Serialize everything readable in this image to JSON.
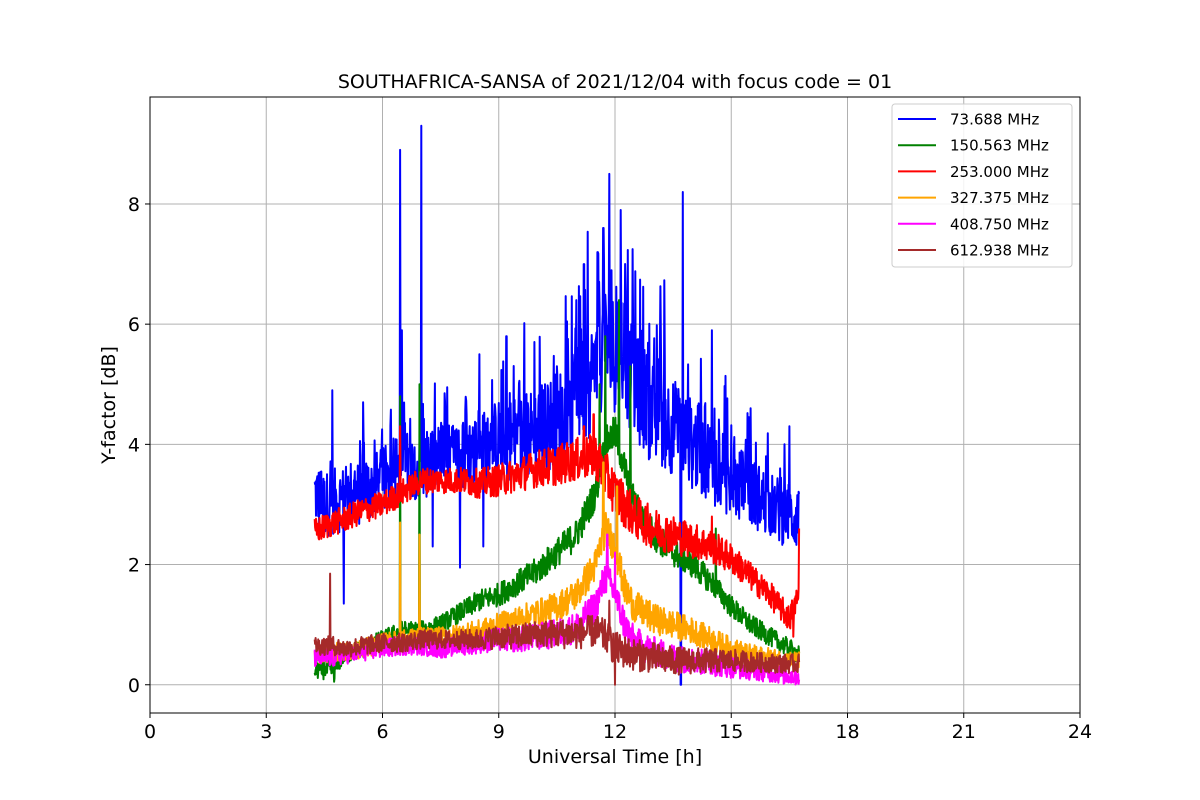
{
  "chart_data": {
    "type": "line",
    "title": "SOUTHAFRICA-SANSA of 2021/12/04 with focus code = 01",
    "xlabel": "Universal Time [h]",
    "ylabel": "Y-factor [dB]",
    "xlim": [
      0,
      24
    ],
    "ylim": [
      -0.47,
      9.78
    ],
    "xticks": [
      0,
      3,
      6,
      9,
      12,
      15,
      18,
      21,
      24
    ],
    "yticks": [
      0,
      2,
      4,
      6,
      8
    ],
    "grid": true,
    "legend_position": "top-right",
    "series": [
      {
        "name": " 73.688 MHz",
        "color": "#0000ff",
        "points": [
          [
            4.25,
            3.2
          ],
          [
            4.5,
            3.0
          ],
          [
            5.0,
            3.1
          ],
          [
            5.5,
            3.2
          ],
          [
            6.0,
            3.4
          ],
          [
            6.5,
            3.7
          ],
          [
            7.0,
            3.6
          ],
          [
            7.5,
            3.8
          ],
          [
            8.0,
            3.8
          ],
          [
            8.5,
            3.9
          ],
          [
            9.0,
            4.1
          ],
          [
            9.5,
            4.1
          ],
          [
            10.0,
            4.2
          ],
          [
            10.5,
            4.4
          ],
          [
            11.0,
            4.7
          ],
          [
            11.5,
            5.2
          ],
          [
            11.75,
            5.7
          ],
          [
            12.0,
            5.5
          ],
          [
            12.25,
            5.4
          ],
          [
            12.5,
            5.0
          ],
          [
            13.0,
            4.5
          ],
          [
            13.5,
            4.3
          ],
          [
            14.0,
            4.0
          ],
          [
            14.5,
            3.7
          ],
          [
            15.0,
            3.4
          ],
          [
            15.5,
            3.2
          ],
          [
            16.0,
            3.0
          ],
          [
            16.5,
            2.8
          ],
          [
            16.75,
            2.8
          ]
        ],
        "spikes": [
          [
            4.7,
            4.9
          ],
          [
            5.0,
            5.2
          ],
          [
            5.5,
            4.7
          ],
          [
            6.45,
            8.9
          ],
          [
            6.5,
            5.9
          ],
          [
            7.0,
            9.3
          ],
          [
            8.5,
            5.5
          ],
          [
            9.2,
            5.8
          ],
          [
            10.5,
            5.3
          ],
          [
            11.0,
            6.4
          ],
          [
            11.2,
            7.0
          ],
          [
            11.55,
            7.2
          ],
          [
            11.7,
            7.6
          ],
          [
            11.85,
            8.5
          ],
          [
            12.15,
            7.9
          ],
          [
            13.75,
            8.2
          ],
          [
            14.5,
            5.9
          ],
          [
            15.5,
            4.6
          ],
          [
            16.5,
            4.3
          ]
        ],
        "dips": [
          [
            5.0,
            1.35
          ],
          [
            7.3,
            2.3
          ],
          [
            8.0,
            1.95
          ],
          [
            8.6,
            2.3
          ],
          [
            13.7,
            0.0
          ]
        ]
      },
      {
        "name": "150.563 MHz",
        "color": "#008000",
        "points": [
          [
            4.25,
            0.25
          ],
          [
            4.75,
            0.25
          ],
          [
            5.0,
            0.5
          ],
          [
            5.5,
            0.6
          ],
          [
            6.0,
            0.75
          ],
          [
            6.5,
            0.9
          ],
          [
            7.0,
            0.9
          ],
          [
            7.5,
            1.0
          ],
          [
            8.0,
            1.2
          ],
          [
            8.5,
            1.4
          ],
          [
            9.0,
            1.5
          ],
          [
            9.5,
            1.7
          ],
          [
            10.0,
            1.9
          ],
          [
            10.5,
            2.2
          ],
          [
            11.0,
            2.5
          ],
          [
            11.5,
            3.2
          ],
          [
            11.75,
            4.0
          ],
          [
            12.0,
            4.2
          ],
          [
            12.25,
            3.6
          ],
          [
            12.5,
            3.0
          ],
          [
            13.0,
            2.5
          ],
          [
            13.5,
            2.2
          ],
          [
            14.0,
            2.0
          ],
          [
            14.5,
            1.7
          ],
          [
            15.0,
            1.3
          ],
          [
            15.5,
            1.0
          ],
          [
            16.0,
            0.8
          ],
          [
            16.5,
            0.6
          ],
          [
            16.75,
            0.5
          ]
        ],
        "spikes": [
          [
            6.45,
            4.8
          ],
          [
            6.95,
            5.0
          ],
          [
            11.6,
            5.0
          ],
          [
            11.75,
            5.8
          ],
          [
            12.1,
            6.4
          ],
          [
            12.4,
            5.3
          ],
          [
            14.6,
            2.6
          ]
        ],
        "dips": [
          [
            4.75,
            0.05
          ]
        ]
      },
      {
        "name": "253.000 MHz",
        "color": "#ff0000",
        "points": [
          [
            4.25,
            2.55
          ],
          [
            4.75,
            2.7
          ],
          [
            5.0,
            2.75
          ],
          [
            5.5,
            2.9
          ],
          [
            6.0,
            3.0
          ],
          [
            6.5,
            3.2
          ],
          [
            7.0,
            3.4
          ],
          [
            7.5,
            3.4
          ],
          [
            8.0,
            3.4
          ],
          [
            8.5,
            3.35
          ],
          [
            9.0,
            3.4
          ],
          [
            9.5,
            3.5
          ],
          [
            10.0,
            3.6
          ],
          [
            10.5,
            3.65
          ],
          [
            11.0,
            3.75
          ],
          [
            11.5,
            3.8
          ],
          [
            11.75,
            3.5
          ],
          [
            12.0,
            3.2
          ],
          [
            12.25,
            3.0
          ],
          [
            12.5,
            2.8
          ],
          [
            13.0,
            2.6
          ],
          [
            13.5,
            2.5
          ],
          [
            14.0,
            2.4
          ],
          [
            14.5,
            2.3
          ],
          [
            15.0,
            2.1
          ],
          [
            15.5,
            1.8
          ],
          [
            16.0,
            1.5
          ],
          [
            16.5,
            1.1
          ],
          [
            16.75,
            1.5
          ]
        ],
        "spikes": [
          [
            6.45,
            4.3
          ],
          [
            11.2,
            4.3
          ],
          [
            11.45,
            4.5
          ],
          [
            14.5,
            2.8
          ],
          [
            16.75,
            2.6
          ]
        ],
        "dips": [
          [
            16.6,
            0.8
          ]
        ]
      },
      {
        "name": "327.375 MHz",
        "color": "#ffa500",
        "points": [
          [
            4.25,
            0.5
          ],
          [
            4.75,
            0.55
          ],
          [
            5.0,
            0.55
          ],
          [
            5.5,
            0.6
          ],
          [
            6.0,
            0.7
          ],
          [
            6.5,
            0.75
          ],
          [
            7.0,
            0.8
          ],
          [
            7.5,
            0.8
          ],
          [
            8.0,
            0.85
          ],
          [
            8.5,
            0.9
          ],
          [
            9.0,
            1.0
          ],
          [
            9.5,
            1.1
          ],
          [
            10.0,
            1.2
          ],
          [
            10.5,
            1.3
          ],
          [
            11.0,
            1.5
          ],
          [
            11.5,
            2.0
          ],
          [
            11.75,
            2.6
          ],
          [
            12.0,
            2.3
          ],
          [
            12.25,
            1.6
          ],
          [
            12.5,
            1.3
          ],
          [
            13.0,
            1.1
          ],
          [
            13.5,
            1.0
          ],
          [
            14.0,
            0.9
          ],
          [
            14.5,
            0.75
          ],
          [
            15.0,
            0.6
          ],
          [
            15.5,
            0.5
          ],
          [
            16.0,
            0.45
          ],
          [
            16.5,
            0.4
          ],
          [
            16.75,
            0.4
          ]
        ],
        "spikes": [
          [
            6.45,
            2.7
          ],
          [
            6.95,
            2.5
          ],
          [
            11.7,
            3.7
          ],
          [
            12.05,
            3.3
          ]
        ],
        "dips": []
      },
      {
        "name": "408.750 MHz",
        "color": "#ff00ff",
        "points": [
          [
            4.25,
            0.45
          ],
          [
            4.75,
            0.45
          ],
          [
            5.0,
            0.5
          ],
          [
            5.5,
            0.55
          ],
          [
            6.0,
            0.6
          ],
          [
            6.5,
            0.65
          ],
          [
            7.0,
            0.65
          ],
          [
            7.5,
            0.6
          ],
          [
            8.0,
            0.65
          ],
          [
            8.5,
            0.7
          ],
          [
            9.0,
            0.75
          ],
          [
            9.5,
            0.75
          ],
          [
            10.0,
            0.8
          ],
          [
            10.5,
            0.85
          ],
          [
            11.0,
            0.95
          ],
          [
            11.5,
            1.3
          ],
          [
            11.75,
            1.8
          ],
          [
            12.0,
            1.5
          ],
          [
            12.25,
            1.0
          ],
          [
            12.5,
            0.7
          ],
          [
            13.0,
            0.55
          ],
          [
            13.5,
            0.45
          ],
          [
            14.0,
            0.4
          ],
          [
            14.5,
            0.35
          ],
          [
            15.0,
            0.3
          ],
          [
            15.5,
            0.25
          ],
          [
            16.0,
            0.2
          ],
          [
            16.5,
            0.15
          ],
          [
            16.75,
            0.15
          ]
        ],
        "spikes": [
          [
            11.8,
            2.5
          ],
          [
            12.0,
            2.2
          ]
        ],
        "dips": []
      },
      {
        "name": "612.938 MHz",
        "color": "#a52a2a",
        "points": [
          [
            4.25,
            0.65
          ],
          [
            4.75,
            0.65
          ],
          [
            5.0,
            0.6
          ],
          [
            5.5,
            0.65
          ],
          [
            6.0,
            0.7
          ],
          [
            6.5,
            0.7
          ],
          [
            7.0,
            0.75
          ],
          [
            7.5,
            0.75
          ],
          [
            8.0,
            0.75
          ],
          [
            8.5,
            0.75
          ],
          [
            9.0,
            0.8
          ],
          [
            9.5,
            0.8
          ],
          [
            10.0,
            0.85
          ],
          [
            10.5,
            0.85
          ],
          [
            11.0,
            0.85
          ],
          [
            11.5,
            0.9
          ],
          [
            11.75,
            0.8
          ],
          [
            12.0,
            0.6
          ],
          [
            12.25,
            0.55
          ],
          [
            12.5,
            0.5
          ],
          [
            13.0,
            0.45
          ],
          [
            13.5,
            0.4
          ],
          [
            14.0,
            0.4
          ],
          [
            14.5,
            0.4
          ],
          [
            15.0,
            0.4
          ],
          [
            15.5,
            0.38
          ],
          [
            16.0,
            0.36
          ],
          [
            16.5,
            0.35
          ],
          [
            16.75,
            0.35
          ]
        ],
        "spikes": [
          [
            4.65,
            1.85
          ],
          [
            11.85,
            1.4
          ]
        ],
        "dips": [
          [
            12.0,
            0.0
          ]
        ]
      }
    ]
  }
}
